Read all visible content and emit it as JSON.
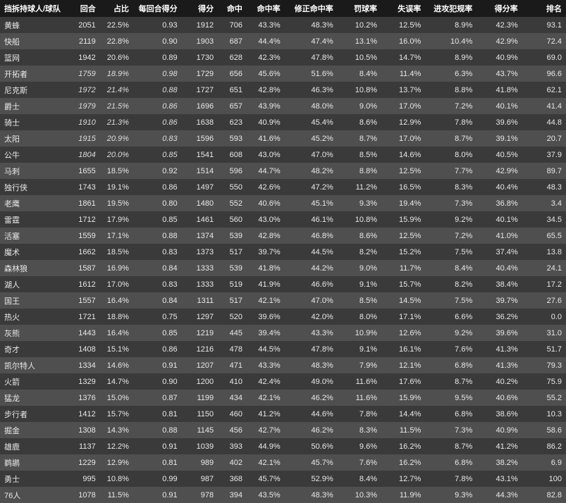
{
  "table": {
    "columns": [
      {
        "key": "team",
        "label": "挡拆持球人/球队",
        "width": 88,
        "align": "left"
      },
      {
        "key": "poss",
        "label": "回合",
        "width": 44
      },
      {
        "key": "pct",
        "label": "占比",
        "width": 44
      },
      {
        "key": "ppp",
        "label": "每回合得分",
        "width": 64
      },
      {
        "key": "pts",
        "label": "得分",
        "width": 48
      },
      {
        "key": "fg",
        "label": "命中",
        "width": 38
      },
      {
        "key": "fgpct",
        "label": "命中率",
        "width": 50
      },
      {
        "key": "adjfg",
        "label": "修正命中率",
        "width": 70
      },
      {
        "key": "ft",
        "label": "罚球率",
        "width": 58
      },
      {
        "key": "to",
        "label": "失误率",
        "width": 58
      },
      {
        "key": "foul",
        "label": "进攻犯规率",
        "width": 68
      },
      {
        "key": "score",
        "label": "得分率",
        "width": 60
      },
      {
        "key": "rank",
        "label": "排名",
        "width": 58
      }
    ],
    "italicRows": [
      3,
      4,
      5,
      6,
      7,
      8
    ],
    "rows": [
      [
        "黄蜂",
        "2051",
        "22.5%",
        "0.93",
        "1912",
        "706",
        "43.3%",
        "48.3%",
        "10.2%",
        "12.5%",
        "8.9%",
        "42.3%",
        "93.1"
      ],
      [
        "快船",
        "2119",
        "22.8%",
        "0.90",
        "1903",
        "687",
        "44.4%",
        "47.4%",
        "13.1%",
        "16.0%",
        "10.4%",
        "42.9%",
        "72.4"
      ],
      [
        "篮网",
        "1942",
        "20.6%",
        "0.89",
        "1730",
        "628",
        "42.3%",
        "47.8%",
        "10.5%",
        "14.7%",
        "8.9%",
        "40.9%",
        "69.0"
      ],
      [
        "开拓者",
        "1759",
        "18.9%",
        "0.98",
        "1729",
        "656",
        "45.6%",
        "51.6%",
        "8.4%",
        "11.4%",
        "6.3%",
        "43.7%",
        "96.6"
      ],
      [
        "尼克斯",
        "1972",
        "21.4%",
        "0.88",
        "1727",
        "651",
        "42.8%",
        "46.3%",
        "10.8%",
        "13.7%",
        "8.8%",
        "41.8%",
        "62.1"
      ],
      [
        "爵士",
        "1979",
        "21.5%",
        "0.86",
        "1696",
        "657",
        "43.9%",
        "48.0%",
        "9.0%",
        "17.0%",
        "7.2%",
        "40.1%",
        "41.4"
      ],
      [
        "骑士",
        "1910",
        "21.3%",
        "0.86",
        "1638",
        "623",
        "40.9%",
        "45.4%",
        "8.6%",
        "12.9%",
        "7.8%",
        "39.6%",
        "44.8"
      ],
      [
        "太阳",
        "1915",
        "20.9%",
        "0.83",
        "1596",
        "593",
        "41.6%",
        "45.2%",
        "8.7%",
        "17.0%",
        "8.7%",
        "39.1%",
        "20.7"
      ],
      [
        "公牛",
        "1804",
        "20.0%",
        "0.85",
        "1541",
        "608",
        "43.0%",
        "47.0%",
        "8.5%",
        "14.6%",
        "8.0%",
        "40.5%",
        "37.9"
      ],
      [
        "马刺",
        "1655",
        "18.5%",
        "0.92",
        "1514",
        "596",
        "44.7%",
        "48.2%",
        "8.8%",
        "12.5%",
        "7.7%",
        "42.9%",
        "89.7"
      ],
      [
        "独行侠",
        "1743",
        "19.1%",
        "0.86",
        "1497",
        "550",
        "42.6%",
        "47.2%",
        "11.2%",
        "16.5%",
        "8.3%",
        "40.4%",
        "48.3"
      ],
      [
        "老鹰",
        "1861",
        "19.5%",
        "0.80",
        "1480",
        "552",
        "40.6%",
        "45.1%",
        "9.3%",
        "19.4%",
        "7.3%",
        "36.8%",
        "3.4"
      ],
      [
        "雷霆",
        "1712",
        "17.9%",
        "0.85",
        "1461",
        "560",
        "43.0%",
        "46.1%",
        "10.8%",
        "15.9%",
        "9.2%",
        "40.1%",
        "34.5"
      ],
      [
        "活塞",
        "1559",
        "17.1%",
        "0.88",
        "1374",
        "539",
        "42.8%",
        "46.8%",
        "8.6%",
        "12.5%",
        "7.2%",
        "41.0%",
        "65.5"
      ],
      [
        "魔术",
        "1662",
        "18.5%",
        "0.83",
        "1373",
        "517",
        "39.7%",
        "44.5%",
        "8.2%",
        "15.2%",
        "7.5%",
        "37.4%",
        "13.8"
      ],
      [
        "森林狼",
        "1587",
        "16.9%",
        "0.84",
        "1333",
        "539",
        "41.8%",
        "44.2%",
        "9.0%",
        "11.7%",
        "8.4%",
        "40.4%",
        "24.1"
      ],
      [
        "湖人",
        "1612",
        "17.0%",
        "0.83",
        "1333",
        "519",
        "41.9%",
        "46.6%",
        "9.1%",
        "15.7%",
        "8.2%",
        "38.4%",
        "17.2"
      ],
      [
        "国王",
        "1557",
        "16.4%",
        "0.84",
        "1311",
        "517",
        "42.1%",
        "47.0%",
        "8.5%",
        "14.5%",
        "7.5%",
        "39.7%",
        "27.6"
      ],
      [
        "热火",
        "1721",
        "18.8%",
        "0.75",
        "1297",
        "520",
        "39.6%",
        "42.0%",
        "8.0%",
        "17.1%",
        "6.6%",
        "36.2%",
        "0.0"
      ],
      [
        "灰熊",
        "1443",
        "16.4%",
        "0.85",
        "1219",
        "445",
        "39.4%",
        "43.3%",
        "10.9%",
        "12.6%",
        "9.2%",
        "39.6%",
        "31.0"
      ],
      [
        "奇才",
        "1408",
        "15.1%",
        "0.86",
        "1216",
        "478",
        "44.5%",
        "47.8%",
        "9.1%",
        "16.1%",
        "7.6%",
        "41.3%",
        "51.7"
      ],
      [
        "凯尔特人",
        "1334",
        "14.6%",
        "0.91",
        "1207",
        "471",
        "43.3%",
        "48.3%",
        "7.9%",
        "12.1%",
        "6.8%",
        "41.3%",
        "79.3"
      ],
      [
        "火箭",
        "1329",
        "14.7%",
        "0.90",
        "1200",
        "410",
        "42.4%",
        "49.0%",
        "11.6%",
        "17.6%",
        "8.7%",
        "40.2%",
        "75.9"
      ],
      [
        "猛龙",
        "1376",
        "15.0%",
        "0.87",
        "1199",
        "434",
        "42.1%",
        "46.2%",
        "11.6%",
        "15.9%",
        "9.5%",
        "40.6%",
        "55.2"
      ],
      [
        "步行者",
        "1412",
        "15.7%",
        "0.81",
        "1150",
        "460",
        "41.2%",
        "44.6%",
        "7.8%",
        "14.4%",
        "6.8%",
        "38.6%",
        "10.3"
      ],
      [
        "掘金",
        "1308",
        "14.3%",
        "0.88",
        "1145",
        "456",
        "42.7%",
        "46.2%",
        "8.3%",
        "11.5%",
        "7.3%",
        "40.9%",
        "58.6"
      ],
      [
        "雄鹿",
        "1137",
        "12.2%",
        "0.91",
        "1039",
        "393",
        "44.9%",
        "50.6%",
        "9.6%",
        "16.2%",
        "8.7%",
        "41.2%",
        "86.2"
      ],
      [
        "鹈鹕",
        "1229",
        "12.9%",
        "0.81",
        "989",
        "402",
        "42.1%",
        "45.7%",
        "7.6%",
        "16.2%",
        "6.8%",
        "38.2%",
        "6.9"
      ],
      [
        "勇士",
        "995",
        "10.8%",
        "0.99",
        "987",
        "368",
        "45.7%",
        "52.9%",
        "8.4%",
        "12.7%",
        "7.8%",
        "43.1%",
        "100"
      ],
      [
        "76人",
        "1078",
        "11.5%",
        "0.91",
        "978",
        "394",
        "43.5%",
        "48.3%",
        "10.3%",
        "11.9%",
        "9.3%",
        "44.3%",
        "82.8"
      ]
    ]
  },
  "style": {
    "bg": "#1a1a1a",
    "rowEven": "#3a3a3a",
    "rowOdd": "#4f4f4f",
    "headerText": "#ffffff",
    "cellText": "#e8e8e8",
    "fontSize": 11
  }
}
